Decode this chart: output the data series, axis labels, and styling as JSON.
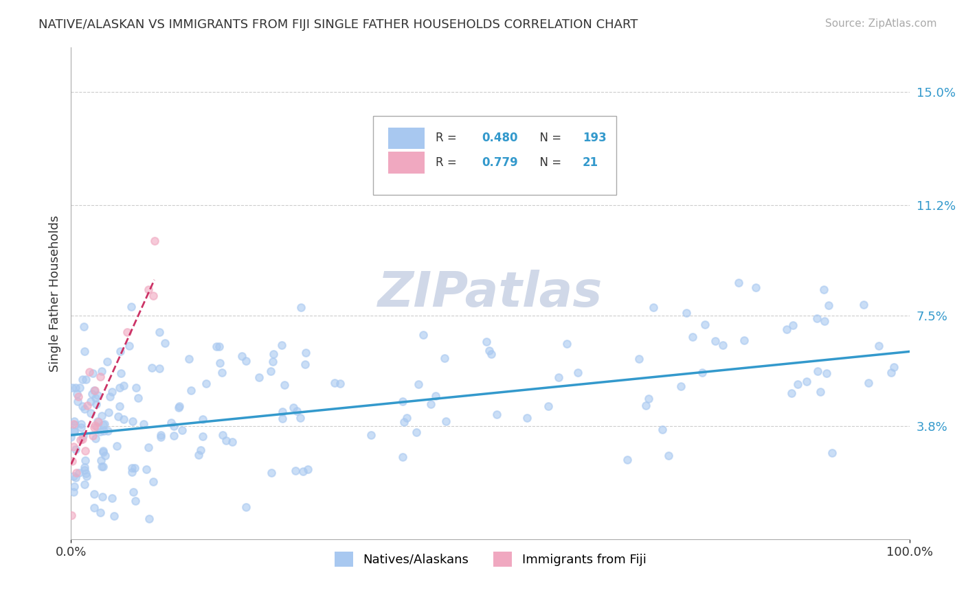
{
  "title": "NATIVE/ALASKAN VS IMMIGRANTS FROM FIJI SINGLE FATHER HOUSEHOLDS CORRELATION CHART",
  "source": "Source: ZipAtlas.com",
  "xlabel": "",
  "ylabel": "Single Father Households",
  "legend1_label": "Natives/Alaskans",
  "legend2_label": "Immigrants from Fiji",
  "R1": 0.48,
  "N1": 193,
  "R2": 0.779,
  "N2": 21,
  "xlim": [
    0,
    100
  ],
  "ylim": [
    0,
    16
  ],
  "yticks": [
    3.8,
    7.5,
    11.2,
    15.0
  ],
  "xticks": [
    0,
    100
  ],
  "xtick_labels": [
    "0.0%",
    "100.0%"
  ],
  "ytick_labels": [
    "3.8%",
    "7.5%",
    "11.2%",
    "15.0%"
  ],
  "color_blue": "#a8c8f0",
  "color_pink": "#f0a8c0",
  "line_color_blue": "#3399cc",
  "line_color_pink": "#cc3366",
  "watermark": "ZIPatlas",
  "watermark_color": "#d0d8e8",
  "background_color": "#ffffff",
  "grid_color": "#cccccc",
  "seed": 42
}
